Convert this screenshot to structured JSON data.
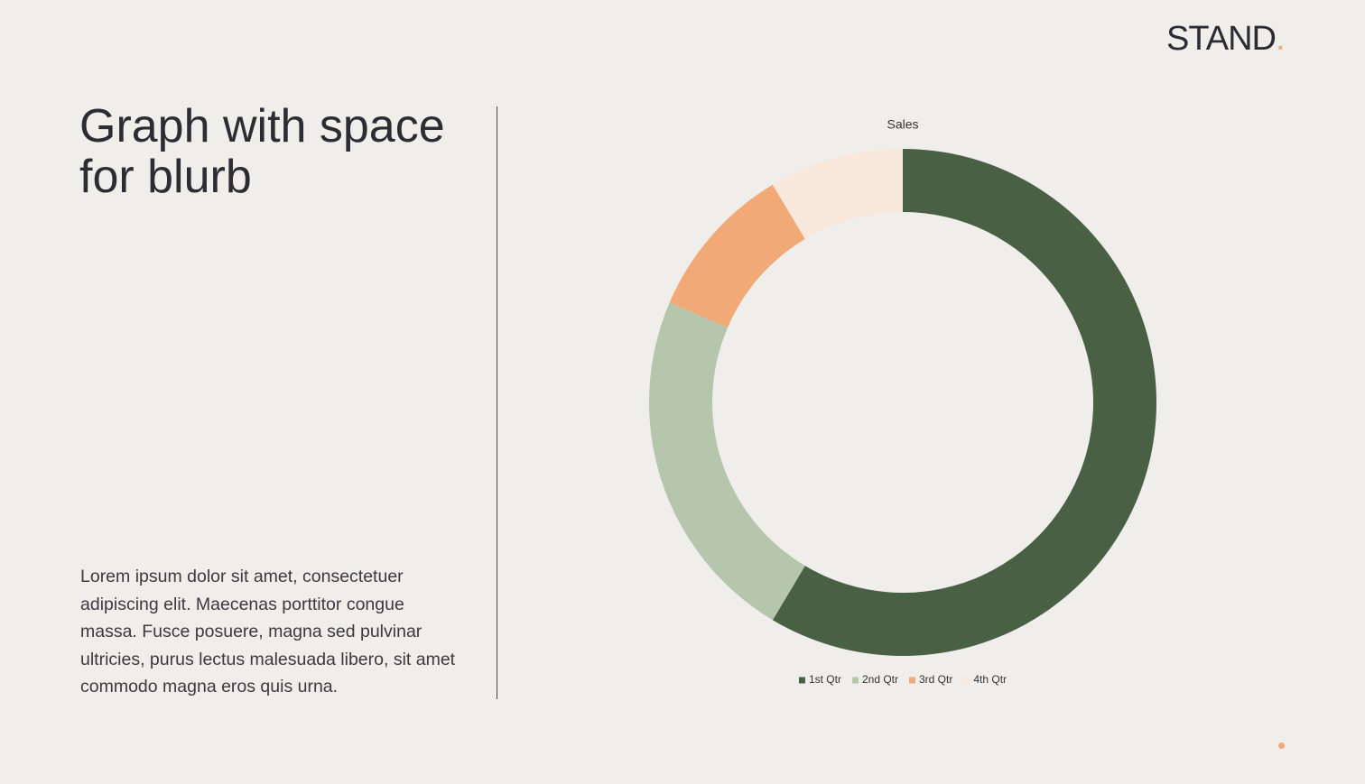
{
  "logo": {
    "text": "STAND",
    "dot": "."
  },
  "title": [
    "Graph with space",
    "for blurb"
  ],
  "blurb": "Lorem ipsum dolor sit amet, consectetuer adipiscing elit. Maecenas porttitor congue massa. Fusce posuere, magna sed pulvinar ultricies, purus lectus malesuada libero, sit amet commodo magna eros quis urna.",
  "chart_data": {
    "type": "doughnut",
    "title": "Sales",
    "categories": [
      "1st Qtr",
      "2nd Qtr",
      "3rd Qtr",
      "4th Qtr"
    ],
    "values": [
      8.2,
      3.2,
      1.4,
      1.2
    ],
    "colors": [
      "#4a6045",
      "#b5c6ad",
      "#f0a977",
      "#f9e8dc"
    ],
    "legend": "bottom"
  }
}
